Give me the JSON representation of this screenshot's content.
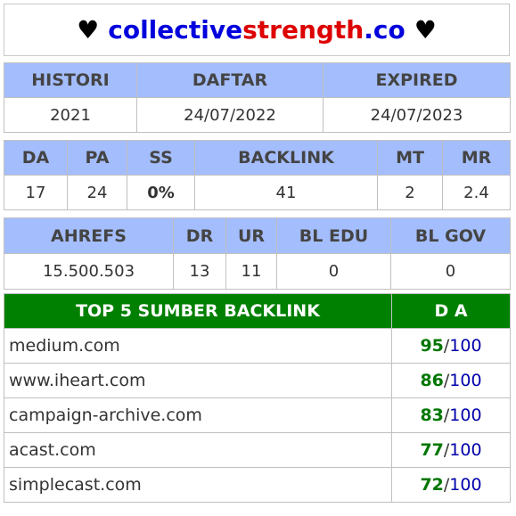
{
  "header": {
    "heart": "♥",
    "domain_part1": "collective",
    "domain_part2": "strength",
    "domain_part3": ".co"
  },
  "history": {
    "headers": [
      "HISTORI",
      "DAFTAR",
      "EXPIRED"
    ],
    "values": [
      "2021",
      "24/07/2022",
      "24/07/2023"
    ]
  },
  "metrics": {
    "headers": [
      "DA",
      "PA",
      "SS",
      "BACKLINK",
      "MT",
      "MR"
    ],
    "values": [
      "17",
      "24",
      "0%",
      "41",
      "2",
      "2.4"
    ]
  },
  "ahrefs": {
    "headers": [
      "AHREFS",
      "DR",
      "UR",
      "BL EDU",
      "BL GOV"
    ],
    "values": [
      "15.500.503",
      "13",
      "11",
      "0",
      "0"
    ]
  },
  "top_backlinks": {
    "title": "TOP 5 SUMBER BACKLINK",
    "da_header": "D A",
    "separator": "/",
    "max": "100",
    "rows": [
      {
        "domain": "medium.com",
        "da": "95"
      },
      {
        "domain": "www.iheart.com",
        "da": "86"
      },
      {
        "domain": "campaign-archive.com",
        "da": "83"
      },
      {
        "domain": "acast.com",
        "da": "77"
      },
      {
        "domain": "simplecast.com",
        "da": "72"
      }
    ]
  },
  "colors": {
    "header_blue": "#a4bdfc",
    "header_green": "#008000",
    "domain_blue": "#0000dd",
    "domain_red": "#dd0000",
    "ss_green": "#7ed321"
  }
}
